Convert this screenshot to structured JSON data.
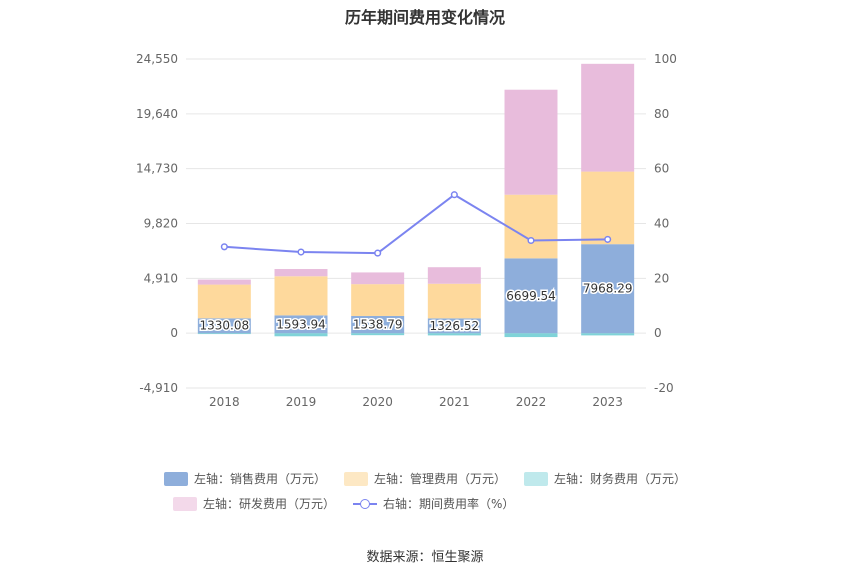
{
  "chart_data": {
    "type": "bar",
    "title": "历年期间费用变化情况",
    "categories": [
      "2018",
      "2019",
      "2020",
      "2021",
      "2022",
      "2023"
    ],
    "series": [
      {
        "name": "左轴：销售费用（万元）",
        "axis": "left",
        "kind": "bar",
        "color": "#8eaedb",
        "values": [
          1330.08,
          1593.94,
          1538.79,
          1326.52,
          6699.54,
          7968.29
        ]
      },
      {
        "name": "左轴：管理费用（万元）",
        "axis": "left",
        "kind": "bar",
        "color": "#fed99c",
        "values": [
          3020,
          3500,
          2850,
          3100,
          5700,
          6500
        ]
      },
      {
        "name": "左轴：财务费用（万元）",
        "axis": "left",
        "kind": "bar",
        "color": "#7fd3d8",
        "values": [
          -80,
          -280,
          -180,
          -200,
          -350,
          -200
        ]
      },
      {
        "name": "左轴：研发费用（万元）",
        "axis": "left",
        "kind": "bar",
        "color": "#e8bcdc",
        "values": [
          450,
          650,
          1050,
          1480,
          9400,
          9650
        ]
      },
      {
        "name": "右轴：期间费用率（%）",
        "axis": "right",
        "kind": "line",
        "color": "#7b84f0",
        "values": [
          31.5,
          29.6,
          29.2,
          50.5,
          33.8,
          34.2
        ]
      }
    ],
    "y_left_ticks": [
      "24,550",
      "19,640",
      "14,730",
      "9,820",
      "4,910",
      "0",
      "-4,910"
    ],
    "y_left_range": [
      -4910,
      24550
    ],
    "y_right_ticks": [
      "100",
      "80",
      "60",
      "40",
      "20",
      "0",
      "-20"
    ],
    "y_right_range": [
      -20,
      100
    ],
    "data_labels": [
      "1330.08",
      "1593.94",
      "1538.79",
      "1326.52",
      "6699.54",
      "7968.29"
    ],
    "grid": true,
    "legend_position": "bottom"
  },
  "colors": {
    "sales": "#8eaedb",
    "admin": "#fed99c",
    "finance": "#7fd3d8",
    "rnd": "#e8bcdc",
    "rate": "#7b84f0",
    "legend_sales": "#8eaedb",
    "legend_admin": "#fde8c4",
    "legend_finance": "#bfe9ec",
    "legend_rnd": "#f3d9ea"
  },
  "source": "数据来源：恒生聚源"
}
